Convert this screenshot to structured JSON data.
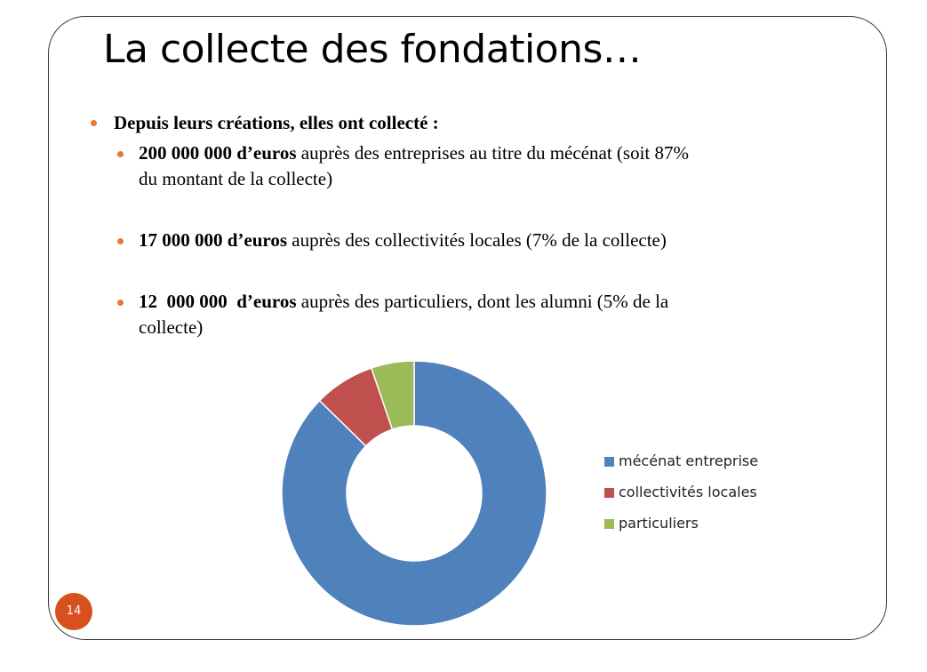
{
  "slide": {
    "title": "La collecte des fondations…",
    "page_number": "14"
  },
  "bullets": {
    "intro": "Depuis leurs créations, elles ont collecté :",
    "items": [
      {
        "amount": "200 000 000 d’euros",
        "text_line1": " auprès des entreprises au titre du mécénat (soit 87%",
        "text_line2": "du montant de la collecte)"
      },
      {
        "amount": "17 000 000 d’euros",
        "text_line1": " auprès des collectivités locales (7% de la collecte)"
      },
      {
        "amount": "12  000 000  d’euros",
        "text_line1": " auprès des particuliers, dont les alumni (5% de la",
        "text_line2": "collecte)"
      }
    ]
  },
  "colors": {
    "bullet": "#e07b39",
    "badge": "#d9501f"
  },
  "chart_data": {
    "type": "pie",
    "variant": "doughnut",
    "title": "",
    "categories": [
      "mécénat entreprise",
      "collectivités locales",
      "particuliers"
    ],
    "values": [
      200000000,
      17000000,
      12000000
    ],
    "colors": [
      "#4f81bd",
      "#c0504d",
      "#9bbb59"
    ],
    "legend_position": "right"
  }
}
